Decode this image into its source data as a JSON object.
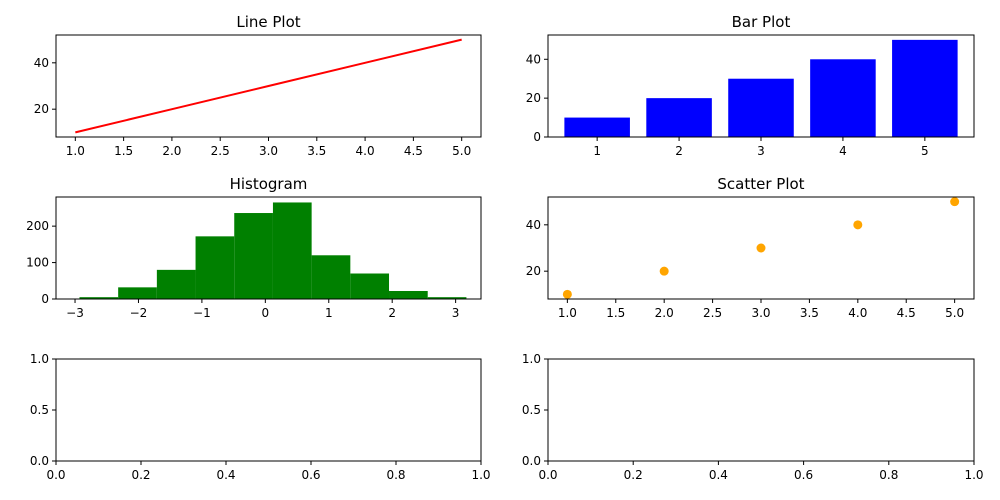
{
  "chart_data": [
    {
      "type": "line",
      "title": "Line Plot",
      "x": [
        1,
        2,
        3,
        4,
        5
      ],
      "y": [
        10,
        20,
        30,
        40,
        50
      ],
      "color": "#ff0000",
      "xlim": [
        0.8,
        5.2
      ],
      "ylim": [
        8,
        52
      ],
      "xticks": [
        1.0,
        1.5,
        2.0,
        2.5,
        3.0,
        3.5,
        4.0,
        4.5,
        5.0
      ],
      "xtick_labels": [
        "1.0",
        "1.5",
        "2.0",
        "2.5",
        "3.0",
        "3.5",
        "4.0",
        "4.5",
        "5.0"
      ],
      "yticks": [
        20,
        40
      ],
      "ytick_labels": [
        "20",
        "40"
      ],
      "grid": false
    },
    {
      "type": "bar",
      "title": "Bar Plot",
      "categories": [
        1,
        2,
        3,
        4,
        5
      ],
      "values": [
        10,
        20,
        30,
        40,
        50
      ],
      "color": "#0000ff",
      "xlim": [
        0.4,
        5.6
      ],
      "ylim": [
        0,
        52.5
      ],
      "xticks": [
        1,
        2,
        3,
        4,
        5
      ],
      "xtick_labels": [
        "1",
        "2",
        "3",
        "4",
        "5"
      ],
      "yticks": [
        0,
        20,
        40
      ],
      "ytick_labels": [
        "0",
        "20",
        "40"
      ],
      "grid": false
    },
    {
      "type": "bar",
      "title": "Histogram",
      "bin_edges": [
        -2.93,
        -2.32,
        -1.71,
        -1.1,
        -0.49,
        0.12,
        0.73,
        1.34,
        1.95,
        2.56,
        3.17
      ],
      "values": [
        5,
        32,
        80,
        172,
        236,
        265,
        120,
        70,
        22,
        5
      ],
      "color": "#008000",
      "xlim": [
        -3.3,
        3.4
      ],
      "ylim": [
        0,
        280
      ],
      "xticks": [
        -3,
        -2,
        -1,
        0,
        1,
        2,
        3
      ],
      "xtick_labels": [
        "−3",
        "−2",
        "−1",
        "0",
        "1",
        "2",
        "3"
      ],
      "yticks": [
        0,
        100,
        200
      ],
      "ytick_labels": [
        "0",
        "100",
        "200"
      ],
      "grid": false
    },
    {
      "type": "scatter",
      "title": "Scatter Plot",
      "x": [
        1,
        2,
        3,
        4,
        5
      ],
      "y": [
        10,
        20,
        30,
        40,
        50
      ],
      "color": "#ffa500",
      "xlim": [
        0.8,
        5.2
      ],
      "ylim": [
        8,
        52
      ],
      "xticks": [
        1.0,
        1.5,
        2.0,
        2.5,
        3.0,
        3.5,
        4.0,
        4.5,
        5.0
      ],
      "xtick_labels": [
        "1.0",
        "1.5",
        "2.0",
        "2.5",
        "3.0",
        "3.5",
        "4.0",
        "4.5",
        "5.0"
      ],
      "yticks": [
        20,
        40
      ],
      "ytick_labels": [
        "20",
        "40"
      ],
      "grid": false
    },
    {
      "type": "empty",
      "title": "",
      "xlim": [
        0,
        1
      ],
      "ylim": [
        0,
        1
      ],
      "xticks": [
        0,
        0.2,
        0.4,
        0.6,
        0.8,
        1.0
      ],
      "xtick_labels": [
        "0.0",
        "0.2",
        "0.4",
        "0.6",
        "0.8",
        "1.0"
      ],
      "yticks": [
        0,
        0.5,
        1.0
      ],
      "ytick_labels": [
        "0.0",
        "0.5",
        "1.0"
      ],
      "grid": false
    },
    {
      "type": "empty",
      "title": "",
      "xlim": [
        0,
        1
      ],
      "ylim": [
        0,
        1
      ],
      "xticks": [
        0,
        0.2,
        0.4,
        0.6,
        0.8,
        1.0
      ],
      "xtick_labels": [
        "0.0",
        "0.2",
        "0.4",
        "0.6",
        "0.8",
        "1.0"
      ],
      "yticks": [
        0,
        0.5,
        1.0
      ],
      "ytick_labels": [
        "0.0",
        "0.5",
        "1.0"
      ],
      "grid": false
    }
  ]
}
